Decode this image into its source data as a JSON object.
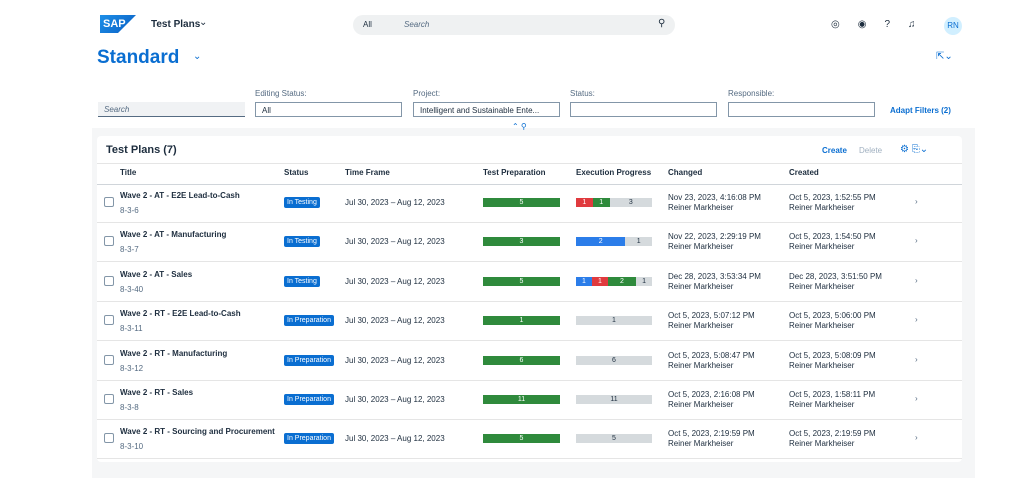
{
  "header": {
    "logo": "SAP",
    "app": "Test Plans",
    "search_scope": "All",
    "search_placeholder": "Search",
    "avatar": "RN"
  },
  "page_title": "Standard",
  "filters": {
    "search_placeholder": "Search",
    "fields": [
      {
        "label": "Editing Status:",
        "value": "All"
      },
      {
        "label": "Project:",
        "value": "Intelligent and Sustainable Ente..."
      },
      {
        "label": "Status:"
      },
      {
        "label": "Responsible:"
      }
    ],
    "adapt": "Adapt Filters (2)"
  },
  "table": {
    "title": "Test Plans (7)",
    "actions": [
      "Create",
      "Delete"
    ],
    "columns": [
      "Title",
      "Status",
      "Time Frame",
      "Test Preparation",
      "Execution Progress",
      "Changed",
      "Created"
    ],
    "rows": [
      {
        "title": "Wave 2 - AT - E2E Lead-to-Cash",
        "id": "8-3-6",
        "status": "In Testing",
        "time_frame": "Jul 30, 2023 – Aug 12, 2023",
        "preparation": 5,
        "execution": [
          {
            "value": 1,
            "color": "#e03a3e"
          },
          {
            "value": 1,
            "color": "#2f8a3c"
          },
          {
            "value": 3,
            "color": "#d5dadd"
          }
        ],
        "changed": "Nov 23, 2023, 4:16:08 PM",
        "changed_by": "Reiner Markheiser",
        "created": "Oct 5, 2023, 1:52:55 PM",
        "created_by": "Reiner Markheiser"
      },
      {
        "title": "Wave 2 - AT - Manufacturing",
        "id": "8-3-7",
        "status": "In Testing",
        "time_frame": "Jul 30, 2023 – Aug 12, 2023",
        "preparation": 3,
        "execution": [
          {
            "value": 2,
            "color": "#2b7de9"
          },
          {
            "value": 1,
            "color": "#d5dadd"
          }
        ],
        "changed": "Nov 22, 2023, 2:29:19 PM",
        "changed_by": "Reiner Markheiser",
        "created": "Oct 5, 2023, 1:54:50 PM",
        "created_by": "Reiner Markheiser"
      },
      {
        "title": "Wave 2 - AT - Sales",
        "id": "8-3-40",
        "status": "In Testing",
        "time_frame": "Jul 30, 2023 – Aug 12, 2023",
        "preparation": 5,
        "execution": [
          {
            "value": 1,
            "color": "#2b7de9"
          },
          {
            "value": 1,
            "color": "#e03a3e"
          },
          {
            "value": 2,
            "color": "#2f8a3c"
          },
          {
            "value": 1,
            "color": "#d5dadd"
          }
        ],
        "changed": "Dec 28, 2023, 3:53:34 PM",
        "changed_by": "Reiner Markheiser",
        "created": "Dec 28, 2023, 3:51:50 PM",
        "created_by": "Reiner Markheiser"
      },
      {
        "title": "Wave 2 - RT - E2E Lead-to-Cash",
        "id": "8-3-11",
        "status": "In Preparation",
        "time_frame": "Jul 30, 2023 – Aug 12, 2023",
        "preparation": 1,
        "execution": [
          {
            "value": 1,
            "color": "#d5dadd"
          }
        ],
        "changed": "Oct 5, 2023, 5:07:12 PM",
        "changed_by": "Reiner Markheiser",
        "created": "Oct 5, 2023, 5:06:00 PM",
        "created_by": "Reiner Markheiser"
      },
      {
        "title": "Wave 2 - RT - Manufacturing",
        "id": "8-3-12",
        "status": "In Preparation",
        "time_frame": "Jul 30, 2023 – Aug 12, 2023",
        "preparation": 6,
        "execution": [
          {
            "value": 6,
            "color": "#d5dadd"
          }
        ],
        "changed": "Oct 5, 2023, 5:08:47 PM",
        "changed_by": "Reiner Markheiser",
        "created": "Oct 5, 2023, 5:08:09 PM",
        "created_by": "Reiner Markheiser"
      },
      {
        "title": "Wave 2 - RT - Sales",
        "id": "8-3-8",
        "status": "In Preparation",
        "time_frame": "Jul 30, 2023 – Aug 12, 2023",
        "preparation": 11,
        "execution": [
          {
            "value": 11,
            "color": "#d5dadd"
          }
        ],
        "changed": "Oct 5, 2023, 2:16:08 PM",
        "changed_by": "Reiner Markheiser",
        "created": "Oct 5, 2023, 1:58:11 PM",
        "created_by": "Reiner Markheiser"
      },
      {
        "title": "Wave 2 - RT - Sourcing and Procurement",
        "id": "8-3-10",
        "status": "In Preparation",
        "time_frame": "Jul 30, 2023 – Aug 12, 2023",
        "preparation": 5,
        "execution": [
          {
            "value": 5,
            "color": "#d5dadd"
          }
        ],
        "changed": "Oct 5, 2023, 2:19:59 PM",
        "changed_by": "Reiner Markheiser",
        "created": "Oct 5, 2023, 2:19:59 PM",
        "created_by": "Reiner Markheiser"
      }
    ]
  }
}
